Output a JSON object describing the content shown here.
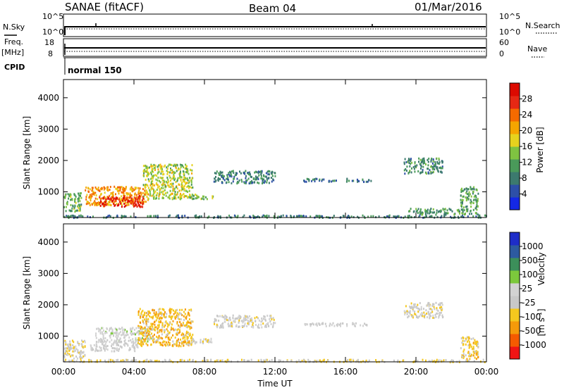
{
  "header": {
    "station": "SANAE (fitACF)",
    "beam": "Beam 04",
    "date": "01/Mar/2016"
  },
  "top_panels": {
    "nsky_label": "N.Sky",
    "nsky_ticks": [
      "10^5",
      "10^0"
    ],
    "nsearch_label": "N.Search",
    "nsearch_ticks": [
      "10^5",
      "10^0"
    ],
    "freq_label": "Freq.",
    "freq_unit": "[MHz]",
    "freq_ticks": [
      "18",
      "8"
    ],
    "nave_label": "Nave",
    "nave_ticks": [
      "60",
      "0"
    ],
    "cpid_label": "CPID",
    "cpid_value": "normal 150"
  },
  "colors": {
    "power_scale": [
      "#1428e6",
      "#2d4fa8",
      "#3c7a6e",
      "#4a9a5a",
      "#7fc241",
      "#e6d21e",
      "#f5a500",
      "#f56a00",
      "#e62814",
      "#dc0a00"
    ],
    "velocity_scale": [
      "#f01414",
      "#f55a00",
      "#f59a0a",
      "#f5c81e",
      "#c8c8c8",
      "#d2d2d2",
      "#7cc83c",
      "#3c8f5a",
      "#2d5aa0",
      "#1e2dc8"
    ]
  },
  "chart_data": [
    {
      "type": "heatmap",
      "panel": "power",
      "ylabel": "Slant Range [km]",
      "xlabel": "",
      "y_ticks": [
        "1000",
        "2000",
        "3000",
        "4000"
      ],
      "ylim": [
        180,
        4580
      ],
      "x_ticks": [
        "00:00",
        "04:00",
        "08:00",
        "12:00",
        "16:00",
        "20:00",
        "00:00"
      ],
      "xlim_hours": [
        0,
        24
      ],
      "colorbar": {
        "title": "Power [dB]",
        "tick_labels": [
          "28",
          "24",
          "20",
          "16",
          "12",
          "8",
          "4"
        ],
        "range": [
          0,
          30
        ]
      },
      "echo_regions": [
        {
          "t": [
            0.0,
            1.0
          ],
          "r": [
            400,
            1000
          ],
          "level": 12
        },
        {
          "t": [
            1.2,
            4.8
          ],
          "r": [
            600,
            1200
          ],
          "level": 20
        },
        {
          "t": [
            2.0,
            4.5
          ],
          "r": [
            550,
            900
          ],
          "level": 27
        },
        {
          "t": [
            4.5,
            7.3
          ],
          "r": [
            800,
            1900
          ],
          "level": 15
        },
        {
          "t": [
            7.0,
            8.5
          ],
          "r": [
            800,
            950
          ],
          "level": 13
        },
        {
          "t": [
            8.5,
            12.0
          ],
          "r": [
            1300,
            1700
          ],
          "level": 8
        },
        {
          "t": [
            13.5,
            17.5
          ],
          "r": [
            1350,
            1450
          ],
          "level": 7
        },
        {
          "t": [
            19.3,
            21.5
          ],
          "r": [
            1600,
            2100
          ],
          "level": 9
        },
        {
          "t": [
            19.5,
            22.5
          ],
          "r": [
            300,
            500
          ],
          "level": 10
        },
        {
          "t": [
            22.5,
            23.5
          ],
          "r": [
            300,
            1200
          ],
          "level": 11
        },
        {
          "t": [
            0.0,
            24.0
          ],
          "r": [
            200,
            280
          ],
          "level": 8
        }
      ]
    },
    {
      "type": "heatmap",
      "panel": "velocity",
      "ylabel": "Slant Range [km]",
      "xlabel": "Time UT",
      "y_ticks": [
        "1000",
        "2000",
        "3000",
        "4000"
      ],
      "ylim": [
        180,
        4580
      ],
      "x_ticks": [
        "00:00",
        "04:00",
        "08:00",
        "12:00",
        "16:00",
        "20:00",
        "00:00"
      ],
      "xlim_hours": [
        0,
        24
      ],
      "colorbar": {
        "title": "Velocity",
        "unit_base": "[m s",
        "unit_exp": "-1",
        "unit_close": "]",
        "tick_labels": [
          "1000",
          "500",
          "100",
          "25",
          "-25",
          "-100",
          "-500",
          "-1000"
        ],
        "range": [
          -1250,
          1250
        ]
      },
      "echo_regions": [
        {
          "t": [
            0.0,
            1.2
          ],
          "r": [
            300,
            900
          ],
          "v": -150
        },
        {
          "t": [
            1.5,
            4.2
          ],
          "r": [
            550,
            800
          ],
          "v": 0
        },
        {
          "t": [
            1.8,
            5.0
          ],
          "r": [
            800,
            1300
          ],
          "v": 60
        },
        {
          "t": [
            4.2,
            7.3
          ],
          "r": [
            700,
            1900
          ],
          "v": -400
        },
        {
          "t": [
            7.0,
            8.5
          ],
          "r": [
            800,
            950
          ],
          "v": -80
        },
        {
          "t": [
            8.5,
            12.0
          ],
          "r": [
            1300,
            1700
          ],
          "v": -60
        },
        {
          "t": [
            13.5,
            17.5
          ],
          "r": [
            1350,
            1450
          ],
          "v": 0
        },
        {
          "t": [
            19.3,
            21.5
          ],
          "r": [
            1600,
            2100
          ],
          "v": -120
        },
        {
          "t": [
            22.5,
            23.5
          ],
          "r": [
            300,
            1000
          ],
          "v": -350
        },
        {
          "t": [
            0.0,
            24.0
          ],
          "r": [
            200,
            280
          ],
          "v": -200
        }
      ]
    }
  ]
}
